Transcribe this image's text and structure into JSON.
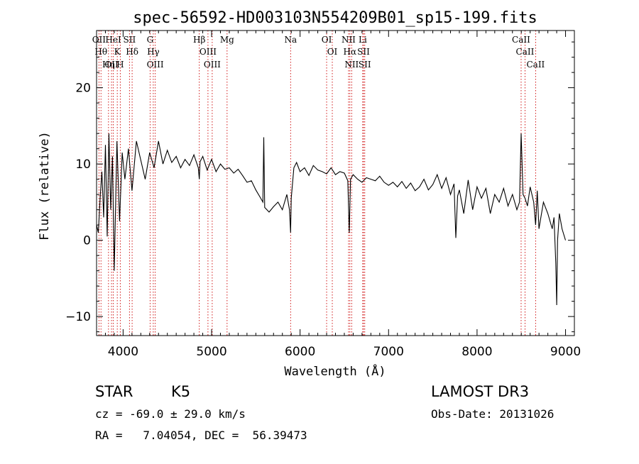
{
  "chart_data": {
    "type": "line",
    "title": "spec-56592-HD003103N554209B01_sp15-199.fits",
    "xlabel": "Wavelength (Å)",
    "ylabel": "Flux (relative)",
    "xlim": [
      3700,
      9100
    ],
    "ylim": [
      -12.5,
      27.5
    ],
    "xticks": [
      4000,
      5000,
      6000,
      7000,
      8000,
      9000
    ],
    "yticks": [
      -10,
      0,
      10,
      20
    ],
    "grid": false,
    "line_color": "#000000",
    "marker_color": "#cc0000",
    "spectrum": {
      "name": "flux",
      "x": [
        3700,
        3720,
        3740,
        3760,
        3780,
        3800,
        3820,
        3840,
        3860,
        3880,
        3900,
        3930,
        3960,
        3990,
        4020,
        4060,
        4100,
        4150,
        4200,
        4250,
        4300,
        4350,
        4400,
        4450,
        4500,
        4550,
        4600,
        4650,
        4700,
        4750,
        4800,
        4850,
        4861,
        4870,
        4900,
        4950,
        5000,
        5050,
        5100,
        5150,
        5200,
        5250,
        5300,
        5350,
        5400,
        5450,
        5500,
        5550,
        5580,
        5590,
        5600,
        5650,
        5700,
        5750,
        5800,
        5850,
        5880,
        5893,
        5900,
        5930,
        5960,
        6000,
        6050,
        6100,
        6150,
        6200,
        6250,
        6300,
        6350,
        6400,
        6450,
        6500,
        6540,
        6556,
        6563,
        6570,
        6600,
        6650,
        6700,
        6750,
        6800,
        6850,
        6900,
        6950,
        7000,
        7050,
        7100,
        7150,
        7200,
        7250,
        7300,
        7350,
        7400,
        7450,
        7500,
        7550,
        7600,
        7650,
        7700,
        7740,
        7760,
        7780,
        7800,
        7850,
        7900,
        7950,
        8000,
        8050,
        8100,
        8150,
        8200,
        8250,
        8300,
        8350,
        8400,
        8450,
        8480,
        8498,
        8520,
        8542,
        8570,
        8600,
        8640,
        8662,
        8680,
        8700,
        8750,
        8800,
        8850,
        8870,
        8890,
        8900,
        8910,
        8930,
        8960,
        9000
      ],
      "y": [
        2.0,
        1.0,
        5.5,
        9.0,
        3.0,
        12.5,
        0.5,
        14.0,
        4.0,
        11.0,
        -4.0,
        13.0,
        2.5,
        11.5,
        8.0,
        12.0,
        6.5,
        13.0,
        10.5,
        8.0,
        11.5,
        9.5,
        13.0,
        10.0,
        11.8,
        10.2,
        11.0,
        9.5,
        10.6,
        9.8,
        11.2,
        9.5,
        8.0,
        10.3,
        11.0,
        9.2,
        10.6,
        9.0,
        10.0,
        9.3,
        9.5,
        8.8,
        9.3,
        8.5,
        7.6,
        7.8,
        6.6,
        5.6,
        5.0,
        13.5,
        4.3,
        3.7,
        4.4,
        5.0,
        4.0,
        6.0,
        4.0,
        1.0,
        5.5,
        9.5,
        10.2,
        9.0,
        9.5,
        8.5,
        9.8,
        9.2,
        9.0,
        8.7,
        9.5,
        8.6,
        9.0,
        8.8,
        7.8,
        1.0,
        4.5,
        8.0,
        8.6,
        8.0,
        7.6,
        8.2,
        8.0,
        7.8,
        8.4,
        7.6,
        7.2,
        7.6,
        7.0,
        7.7,
        6.8,
        7.5,
        6.5,
        7.0,
        8.0,
        6.6,
        7.3,
        8.6,
        6.8,
        8.2,
        6.0,
        7.4,
        0.3,
        5.8,
        6.6,
        3.5,
        7.9,
        4.0,
        7.0,
        5.5,
        6.8,
        3.5,
        6.0,
        5.0,
        6.8,
        4.5,
        6.0,
        4.0,
        5.0,
        14.0,
        6.0,
        5.5,
        4.5,
        7.0,
        5.0,
        2.0,
        6.5,
        1.5,
        5.0,
        3.5,
        1.5,
        3.0,
        -3.0,
        -8.5,
        0.0,
        3.5,
        1.5,
        0.0
      ]
    },
    "spectral_lines": [
      {
        "name": "OII",
        "wavelength": 3727
      },
      {
        "name": "Hθ",
        "wavelength": 3750
      },
      {
        "name": "Hη",
        "wavelength": 3835
      },
      {
        "name": "OII",
        "wavelength": 3869
      },
      {
        "name": "HeI",
        "wavelength": 3889
      },
      {
        "name": "K",
        "wavelength": 3934
      },
      {
        "name": "H",
        "wavelength": 3968
      },
      {
        "name": "SII",
        "wavelength": 4072
      },
      {
        "name": "Hδ",
        "wavelength": 4102
      },
      {
        "name": "G",
        "wavelength": 4305
      },
      {
        "name": "Hγ",
        "wavelength": 4341
      },
      {
        "name": "OIII",
        "wavelength": 4363
      },
      {
        "name": "Hβ",
        "wavelength": 4861
      },
      {
        "name": "OIII",
        "wavelength": 4959
      },
      {
        "name": "OIII",
        "wavelength": 5007
      },
      {
        "name": "Mg",
        "wavelength": 5175
      },
      {
        "name": "Na",
        "wavelength": 5893
      },
      {
        "name": "OI",
        "wavelength": 6300
      },
      {
        "name": "OI",
        "wavelength": 6364
      },
      {
        "name": "NII",
        "wavelength": 6548
      },
      {
        "name": "Hα",
        "wavelength": 6563
      },
      {
        "name": "NII",
        "wavelength": 6583
      },
      {
        "name": "Li",
        "wavelength": 6708
      },
      {
        "name": "SII",
        "wavelength": 6717
      },
      {
        "name": "SII",
        "wavelength": 6731
      },
      {
        "name": "CaII",
        "wavelength": 8498
      },
      {
        "name": "CaII",
        "wavelength": 8542
      },
      {
        "name": "CaII",
        "wavelength": 8662
      }
    ]
  },
  "info": {
    "object_class": "STAR",
    "subclass": "K5",
    "survey": "LAMOST DR3",
    "redshift": "cz = -69.0 ± 29.0 km/s",
    "obs_date": "Obs-Date: 20131026",
    "coords": "RA =   7.04054, DEC =  56.39473"
  }
}
